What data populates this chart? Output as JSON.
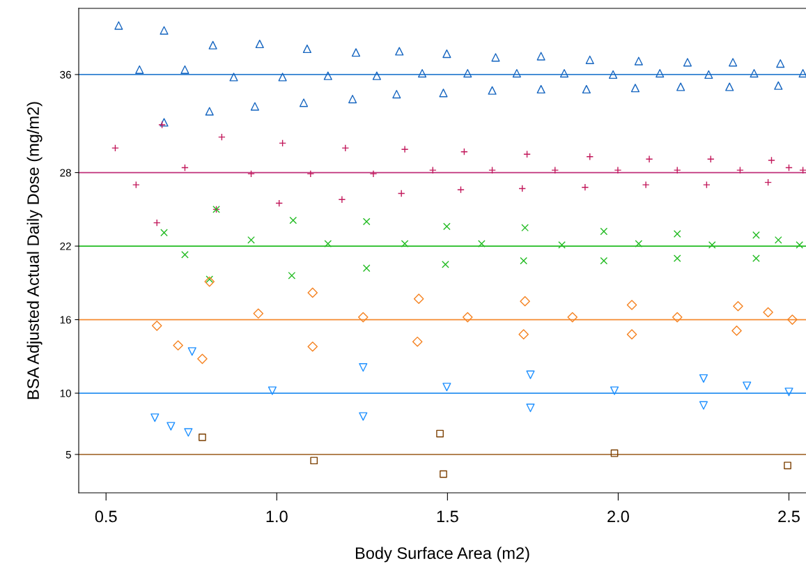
{
  "chart_data": {
    "type": "scatter",
    "xlabel": "Body Surface Area (m2)",
    "ylabel": "BSA Adjusted Actual Daily Dose (mg/m2)",
    "xlim": [
      0.42,
      2.55
    ],
    "ylim": [
      1.87,
      41.4
    ],
    "xticks": [
      {
        "value": 0.5,
        "label": "0.5"
      },
      {
        "value": 1.0,
        "label": "1.0"
      },
      {
        "value": 1.5,
        "label": "1.5"
      },
      {
        "value": 2.0,
        "label": "2.0"
      },
      {
        "value": 2.5,
        "label": "2.5"
      }
    ],
    "yticks": [
      5,
      10,
      16,
      22,
      28,
      36
    ],
    "grid": false,
    "legend": false,
    "series": [
      {
        "color": "#1565c0",
        "marker": "triangle",
        "x": [
          0.537,
          0.598,
          0.67,
          0.67,
          0.731,
          0.803,
          0.813,
          0.874,
          0.936,
          0.95,
          1.017,
          1.079,
          1.089,
          1.15,
          1.222,
          1.232,
          1.293,
          1.351,
          1.359,
          1.426,
          1.488,
          1.498,
          1.559,
          1.631,
          1.641,
          1.703,
          1.774,
          1.774,
          1.842,
          1.907,
          1.917,
          1.985,
          2.05,
          2.06,
          2.122,
          2.183,
          2.203,
          2.265,
          2.326,
          2.336,
          2.398,
          2.469,
          2.475,
          2.541
        ],
        "values": [
          40.0,
          36.4,
          32.1,
          39.6,
          36.4,
          33.0,
          38.4,
          35.8,
          33.4,
          38.5,
          35.8,
          33.7,
          38.1,
          35.9,
          34.0,
          37.8,
          35.9,
          34.4,
          37.9,
          36.1,
          34.5,
          37.7,
          36.1,
          34.7,
          37.4,
          36.1,
          34.8,
          37.5,
          36.1,
          34.8,
          37.2,
          36.0,
          34.9,
          37.1,
          36.1,
          35.0,
          37.0,
          36.0,
          35.0,
          37.0,
          36.1,
          35.1,
          36.9,
          36.1
        ]
      },
      {
        "color": "#c2185b",
        "marker": "plus",
        "x": [
          0.527,
          0.588,
          0.649,
          0.664,
          0.731,
          0.823,
          0.839,
          0.925,
          1.007,
          1.017,
          1.099,
          1.191,
          1.201,
          1.283,
          1.365,
          1.375,
          1.457,
          1.539,
          1.549,
          1.631,
          1.719,
          1.733,
          1.815,
          1.903,
          1.917,
          1.999,
          2.081,
          2.091,
          2.173,
          2.259,
          2.271,
          2.357,
          2.439,
          2.449,
          2.5,
          2.541
        ],
        "values": [
          30.0,
          27.0,
          23.9,
          31.9,
          28.4,
          25.0,
          30.9,
          27.9,
          25.5,
          30.4,
          27.9,
          25.8,
          30.0,
          27.9,
          26.3,
          29.9,
          28.2,
          26.6,
          29.7,
          28.2,
          26.7,
          29.5,
          28.2,
          26.8,
          29.3,
          28.2,
          27.0,
          29.1,
          28.2,
          27.0,
          29.1,
          28.2,
          27.2,
          29.0,
          28.4,
          28.2
        ]
      },
      {
        "color": "#22bb22",
        "marker": "x",
        "x": [
          0.67,
          0.731,
          0.803,
          0.823,
          0.925,
          1.044,
          1.048,
          1.15,
          1.263,
          1.263,
          1.375,
          1.494,
          1.498,
          1.6,
          1.723,
          1.727,
          1.835,
          1.958,
          1.958,
          2.06,
          2.173,
          2.173,
          2.275,
          2.404,
          2.404,
          2.469,
          2.531
        ],
        "values": [
          23.1,
          21.3,
          19.3,
          25.0,
          22.5,
          19.6,
          24.1,
          22.2,
          20.2,
          24.0,
          22.2,
          20.5,
          23.6,
          22.2,
          20.8,
          23.5,
          22.1,
          20.8,
          23.2,
          22.2,
          21.0,
          23.0,
          22.1,
          21.0,
          22.9,
          22.5,
          22.1
        ]
      },
      {
        "color": "#f58220",
        "marker": "diamond",
        "x": [
          0.649,
          0.711,
          0.782,
          0.803,
          0.946,
          1.105,
          1.105,
          1.253,
          1.412,
          1.416,
          1.559,
          1.723,
          1.727,
          1.866,
          2.04,
          2.04,
          2.173,
          2.347,
          2.351,
          2.439,
          2.51
        ],
        "values": [
          15.5,
          13.9,
          12.8,
          19.1,
          16.5,
          13.8,
          18.2,
          16.2,
          14.2,
          17.7,
          16.2,
          14.8,
          17.5,
          16.2,
          14.8,
          17.2,
          16.2,
          15.1,
          17.1,
          16.6,
          16.0
        ]
      },
      {
        "color": "#1e90ff",
        "marker": "triangle_down",
        "x": [
          0.643,
          0.69,
          0.741,
          0.752,
          0.987,
          1.253,
          1.253,
          1.498,
          1.743,
          1.743,
          1.989,
          2.25,
          2.25,
          2.377,
          2.5
        ],
        "values": [
          8.0,
          7.3,
          6.8,
          13.4,
          10.2,
          8.1,
          12.1,
          10.5,
          8.8,
          11.5,
          10.2,
          9.0,
          11.2,
          10.6,
          10.1
        ]
      },
      {
        "color": "#7b3f00",
        "marker": "square",
        "x": [
          0.782,
          1.109,
          1.488,
          1.478,
          1.989,
          2.496
        ],
        "values": [
          6.4,
          4.5,
          3.4,
          6.7,
          5.1,
          4.1
        ]
      }
    ],
    "ref_lines": [
      {
        "axis": "y",
        "value": 36,
        "color": "#2f7fd0"
      },
      {
        "axis": "y",
        "value": 28,
        "color": "#c0307a"
      },
      {
        "axis": "y",
        "value": 22,
        "color": "#22bb22"
      },
      {
        "axis": "y",
        "value": 16,
        "color": "#f58a30"
      },
      {
        "axis": "y",
        "value": 10,
        "color": "#2a90f0"
      },
      {
        "axis": "y",
        "value": 5,
        "color": "#9a5a1a"
      }
    ]
  }
}
